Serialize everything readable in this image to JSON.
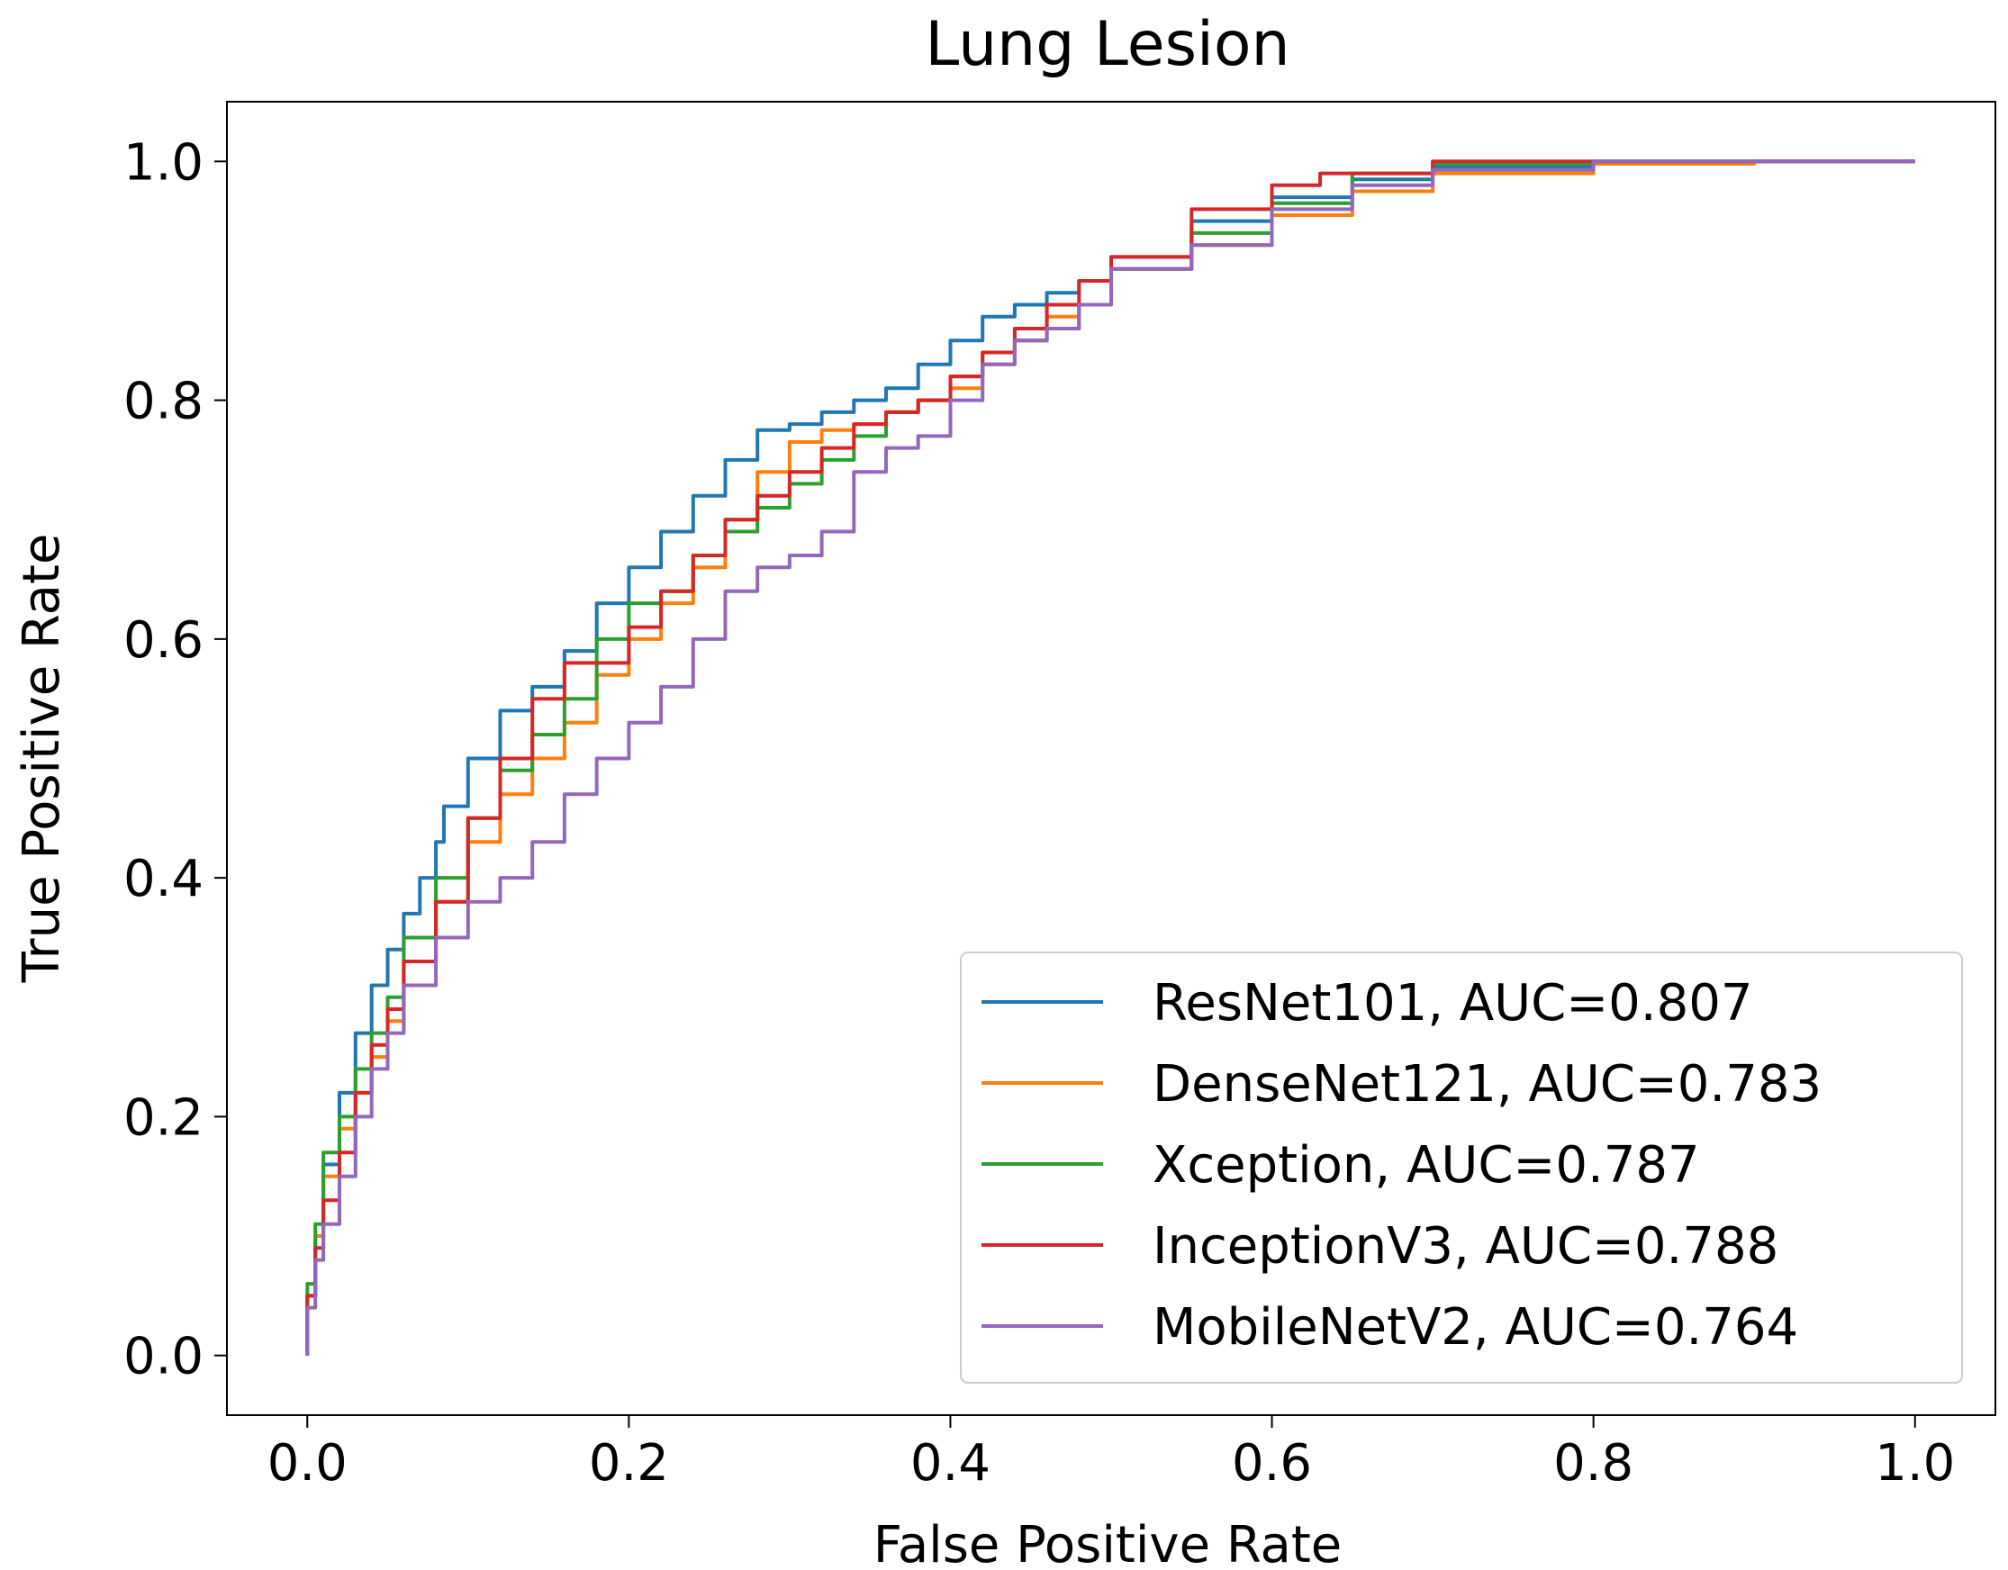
{
  "chart_data": {
    "type": "line",
    "title": "Lung Lesion",
    "xlabel": "False Positive Rate",
    "ylabel": "True Positive Rate",
    "xlim": [
      -0.05,
      1.05
    ],
    "ylim": [
      -0.05,
      1.05
    ],
    "xticks": [
      "0.0",
      "0.2",
      "0.4",
      "0.6",
      "0.8",
      "1.0"
    ],
    "yticks": [
      "0.0",
      "0.2",
      "0.4",
      "0.6",
      "0.8",
      "1.0"
    ],
    "grid": false,
    "legend_position": "lower-right",
    "series": [
      {
        "name": "ResNet101, AUC=0.807",
        "color": "#1f77b4",
        "x": [
          0,
          0.005,
          0.01,
          0.02,
          0.03,
          0.04,
          0.05,
          0.06,
          0.07,
          0.08,
          0.085,
          0.1,
          0.12,
          0.14,
          0.16,
          0.18,
          0.2,
          0.22,
          0.24,
          0.26,
          0.28,
          0.3,
          0.32,
          0.34,
          0.36,
          0.38,
          0.4,
          0.42,
          0.44,
          0.46,
          0.48,
          0.5,
          0.55,
          0.6,
          0.65,
          0.7,
          0.8,
          0.9,
          1.0
        ],
        "y": [
          0,
          0.05,
          0.1,
          0.16,
          0.22,
          0.27,
          0.31,
          0.34,
          0.37,
          0.4,
          0.43,
          0.46,
          0.5,
          0.54,
          0.56,
          0.59,
          0.63,
          0.66,
          0.69,
          0.72,
          0.75,
          0.775,
          0.78,
          0.79,
          0.8,
          0.81,
          0.83,
          0.85,
          0.87,
          0.88,
          0.89,
          0.9,
          0.92,
          0.95,
          0.97,
          0.985,
          0.995,
          1.0,
          1.0
        ]
      },
      {
        "name": "DenseNet121, AUC=0.783",
        "color": "#ff7f0e",
        "x": [
          0,
          0.005,
          0.01,
          0.02,
          0.03,
          0.04,
          0.05,
          0.06,
          0.08,
          0.1,
          0.12,
          0.14,
          0.16,
          0.18,
          0.2,
          0.22,
          0.24,
          0.26,
          0.28,
          0.3,
          0.32,
          0.34,
          0.36,
          0.38,
          0.4,
          0.42,
          0.44,
          0.46,
          0.48,
          0.5,
          0.55,
          0.6,
          0.65,
          0.7,
          0.8,
          0.9,
          1.0
        ],
        "y": [
          0,
          0.05,
          0.1,
          0.15,
          0.19,
          0.22,
          0.25,
          0.28,
          0.33,
          0.38,
          0.43,
          0.47,
          0.5,
          0.53,
          0.57,
          0.6,
          0.63,
          0.66,
          0.7,
          0.74,
          0.765,
          0.775,
          0.78,
          0.79,
          0.8,
          0.81,
          0.83,
          0.85,
          0.87,
          0.88,
          0.91,
          0.93,
          0.955,
          0.975,
          0.99,
          0.998,
          1.0
        ]
      },
      {
        "name": "Xception, AUC=0.787",
        "color": "#2ca02c",
        "x": [
          0,
          0.005,
          0.01,
          0.02,
          0.03,
          0.04,
          0.05,
          0.06,
          0.08,
          0.1,
          0.12,
          0.14,
          0.16,
          0.18,
          0.2,
          0.22,
          0.24,
          0.26,
          0.28,
          0.3,
          0.32,
          0.34,
          0.36,
          0.38,
          0.4,
          0.42,
          0.44,
          0.46,
          0.48,
          0.5,
          0.55,
          0.6,
          0.65,
          0.7,
          0.8,
          0.9,
          1.0
        ],
        "y": [
          0,
          0.06,
          0.11,
          0.17,
          0.2,
          0.24,
          0.27,
          0.3,
          0.35,
          0.4,
          0.45,
          0.49,
          0.52,
          0.55,
          0.6,
          0.63,
          0.64,
          0.67,
          0.69,
          0.71,
          0.73,
          0.75,
          0.77,
          0.79,
          0.8,
          0.82,
          0.84,
          0.85,
          0.86,
          0.88,
          0.91,
          0.94,
          0.965,
          0.99,
          0.998,
          1.0,
          1.0
        ]
      },
      {
        "name": "InceptionV3, AUC=0.788",
        "color": "#d62728",
        "x": [
          0,
          0.005,
          0.01,
          0.02,
          0.03,
          0.04,
          0.05,
          0.06,
          0.08,
          0.1,
          0.12,
          0.14,
          0.16,
          0.18,
          0.2,
          0.22,
          0.24,
          0.26,
          0.28,
          0.3,
          0.32,
          0.34,
          0.36,
          0.38,
          0.4,
          0.42,
          0.44,
          0.46,
          0.48,
          0.5,
          0.55,
          0.6,
          0.63,
          0.7,
          0.8,
          0.9,
          1.0
        ],
        "y": [
          0,
          0.05,
          0.09,
          0.13,
          0.17,
          0.22,
          0.26,
          0.29,
          0.33,
          0.38,
          0.45,
          0.5,
          0.55,
          0.58,
          0.58,
          0.61,
          0.64,
          0.67,
          0.7,
          0.72,
          0.74,
          0.76,
          0.78,
          0.79,
          0.8,
          0.82,
          0.84,
          0.86,
          0.88,
          0.9,
          0.92,
          0.96,
          0.98,
          0.99,
          1.0,
          1.0,
          1.0
        ]
      },
      {
        "name": "MobileNetV2, AUC=0.764",
        "color": "#9467bd",
        "x": [
          0,
          0.005,
          0.01,
          0.02,
          0.03,
          0.04,
          0.05,
          0.06,
          0.08,
          0.1,
          0.12,
          0.14,
          0.16,
          0.18,
          0.2,
          0.22,
          0.24,
          0.26,
          0.28,
          0.3,
          0.32,
          0.34,
          0.36,
          0.38,
          0.4,
          0.42,
          0.44,
          0.46,
          0.48,
          0.5,
          0.55,
          0.6,
          0.65,
          0.7,
          0.8,
          0.9,
          1.0
        ],
        "y": [
          0,
          0.04,
          0.08,
          0.11,
          0.15,
          0.2,
          0.24,
          0.27,
          0.31,
          0.35,
          0.38,
          0.4,
          0.43,
          0.47,
          0.5,
          0.53,
          0.56,
          0.6,
          0.64,
          0.66,
          0.67,
          0.69,
          0.74,
          0.76,
          0.77,
          0.8,
          0.83,
          0.85,
          0.86,
          0.88,
          0.91,
          0.93,
          0.96,
          0.98,
          0.993,
          1.0,
          1.0
        ]
      }
    ]
  }
}
